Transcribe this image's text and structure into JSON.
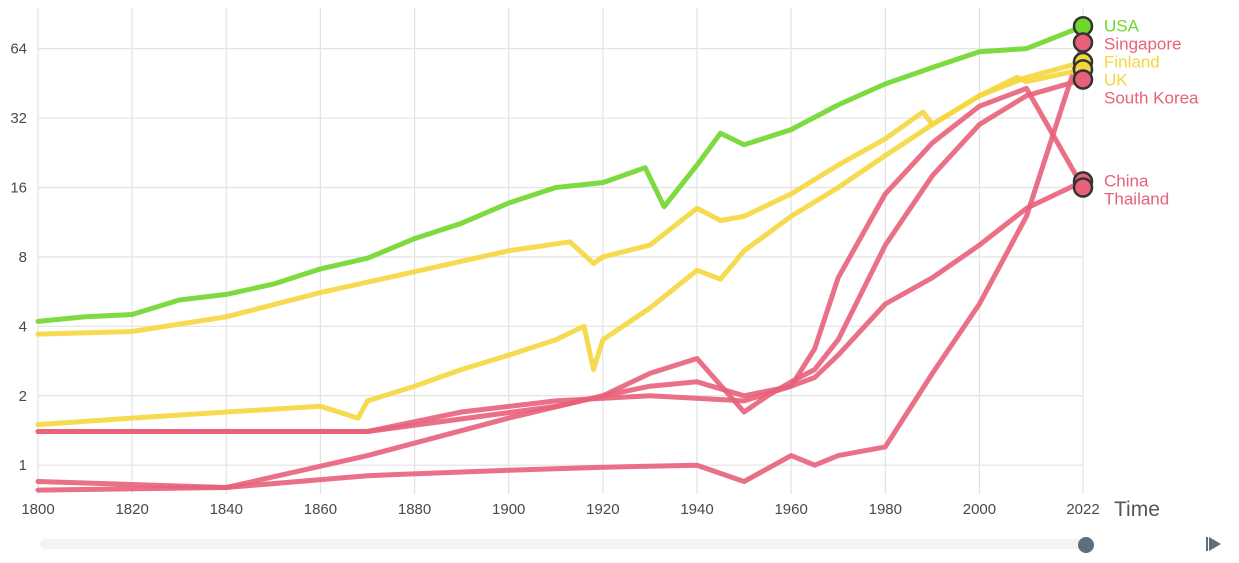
{
  "chart_data": {
    "type": "line",
    "title": "",
    "xlabel": "Time",
    "ylabel": "",
    "yscale": "log2",
    "xlim": [
      1800,
      2022
    ],
    "ylim": [
      0.75,
      96
    ],
    "grid": true,
    "x_ticks": [
      "1800",
      "1820",
      "1840",
      "1860",
      "1880",
      "1900",
      "1920",
      "1940",
      "1960",
      "1980",
      "2000",
      "2022"
    ],
    "y_ticks": [
      {
        "value": 1,
        "label": "1"
      },
      {
        "value": 2,
        "label": "2"
      },
      {
        "value": 4,
        "label": "4"
      },
      {
        "value": 8,
        "label": "8"
      },
      {
        "value": 16,
        "label": "16"
      },
      {
        "value": 32,
        "label": "32"
      },
      {
        "value": 64,
        "label": "64"
      }
    ],
    "series": [
      {
        "name": "USA",
        "color": "#6fd62a",
        "x": [
          1800,
          1810,
          1820,
          1830,
          1840,
          1850,
          1860,
          1870,
          1880,
          1890,
          1900,
          1910,
          1920,
          1929,
          1933,
          1940,
          1945,
          1950,
          1960,
          1970,
          1980,
          1990,
          2000,
          2010,
          2022
        ],
        "y": [
          4.2,
          4.4,
          4.5,
          5.2,
          5.5,
          6.1,
          7.1,
          7.9,
          9.6,
          11.2,
          13.7,
          16.0,
          16.8,
          19.5,
          13.2,
          20.0,
          27.5,
          24.5,
          28.5,
          36.5,
          45.0,
          53.0,
          62.0,
          64.0,
          80.0
        ]
      },
      {
        "name": "Singapore",
        "color": "#e8607a",
        "x": [
          1800,
          1840,
          1870,
          1900,
          1920,
          1940,
          1950,
          1960,
          1965,
          1970,
          1980,
          1990,
          2000,
          2010,
          2022
        ],
        "y": [
          0.85,
          0.8,
          0.9,
          0.95,
          0.98,
          1.0,
          0.85,
          1.1,
          1.0,
          1.1,
          1.2,
          2.5,
          5.0,
          12.0,
          68.0
        ]
      },
      {
        "name": "Finland",
        "color": "#f5d63c",
        "x": [
          1800,
          1820,
          1840,
          1860,
          1868,
          1870,
          1880,
          1890,
          1900,
          1910,
          1916,
          1918,
          1920,
          1930,
          1940,
          1945,
          1950,
          1960,
          1970,
          1980,
          1990,
          2000,
          2010,
          2022
        ],
        "y": [
          1.5,
          1.6,
          1.7,
          1.8,
          1.6,
          1.9,
          2.2,
          2.6,
          3.0,
          3.5,
          4.0,
          2.6,
          3.5,
          4.8,
          7.0,
          6.4,
          8.5,
          12.0,
          16.0,
          22.0,
          30.0,
          40.0,
          48.0,
          56.0
        ]
      },
      {
        "name": "UK",
        "color": "#f5d63c",
        "x": [
          1800,
          1820,
          1840,
          1860,
          1880,
          1900,
          1913,
          1918,
          1920,
          1930,
          1940,
          1945,
          1950,
          1960,
          1970,
          1980,
          1988,
          1990,
          2000,
          2008,
          2010,
          2022
        ],
        "y": [
          3.7,
          3.8,
          4.4,
          5.6,
          6.9,
          8.5,
          9.3,
          7.5,
          8.0,
          9.0,
          13.0,
          11.5,
          12.0,
          15.0,
          20.0,
          26.0,
          34.0,
          30.0,
          40.0,
          48.0,
          46.0,
          52.0
        ]
      },
      {
        "name": "South Korea",
        "color": "#e8607a",
        "x": [
          1800,
          1870,
          1910,
          1920,
          1930,
          1940,
          1950,
          1955,
          1960,
          1965,
          1970,
          1980,
          1990,
          2000,
          2010,
          2022
        ],
        "y": [
          1.4,
          1.4,
          1.8,
          2.0,
          2.5,
          2.9,
          1.7,
          2.0,
          2.3,
          2.6,
          3.5,
          9.0,
          18.0,
          30.0,
          40.0,
          47.0
        ]
      },
      {
        "name": "China",
        "color": "#e8607a",
        "x": [
          1800,
          1840,
          1870,
          1890,
          1910,
          1930,
          1950,
          1960,
          1965,
          1970,
          1980,
          1990,
          2000,
          2010,
          2022
        ],
        "y": [
          1.4,
          1.4,
          1.4,
          1.7,
          1.9,
          2.0,
          1.9,
          2.2,
          2.4,
          3.0,
          5.0,
          6.5,
          9.0,
          13.0,
          17.0
        ]
      },
      {
        "name": "Thailand",
        "color": "#e8607a",
        "x": [
          1800,
          1840,
          1870,
          1900,
          1920,
          1930,
          1940,
          1950,
          1960,
          1965,
          1970,
          1980,
          1990,
          2000,
          2010,
          2022
        ],
        "y": [
          0.78,
          0.8,
          1.1,
          1.6,
          2.0,
          2.2,
          2.3,
          2.0,
          2.2,
          3.2,
          6.5,
          15.0,
          25.0,
          36.0,
          43.0,
          16.0
        ]
      }
    ],
    "end_labels": [
      {
        "name": "USA",
        "color": "#6fd62a"
      },
      {
        "name": "Singapore",
        "color": "#e8607a"
      },
      {
        "name": "Finland",
        "color": "#f5d63c"
      },
      {
        "name": "UK",
        "color": "#f5d63c"
      },
      {
        "name": "South Korea",
        "color": "#e8607a"
      },
      {
        "name": "China",
        "color": "#e8607a"
      },
      {
        "name": "Thailand",
        "color": "#e8607a"
      }
    ]
  },
  "timeline": {
    "track_color": "#f3f3f3",
    "handle_color": "#5e6e7a",
    "play_icon": "play-icon"
  }
}
